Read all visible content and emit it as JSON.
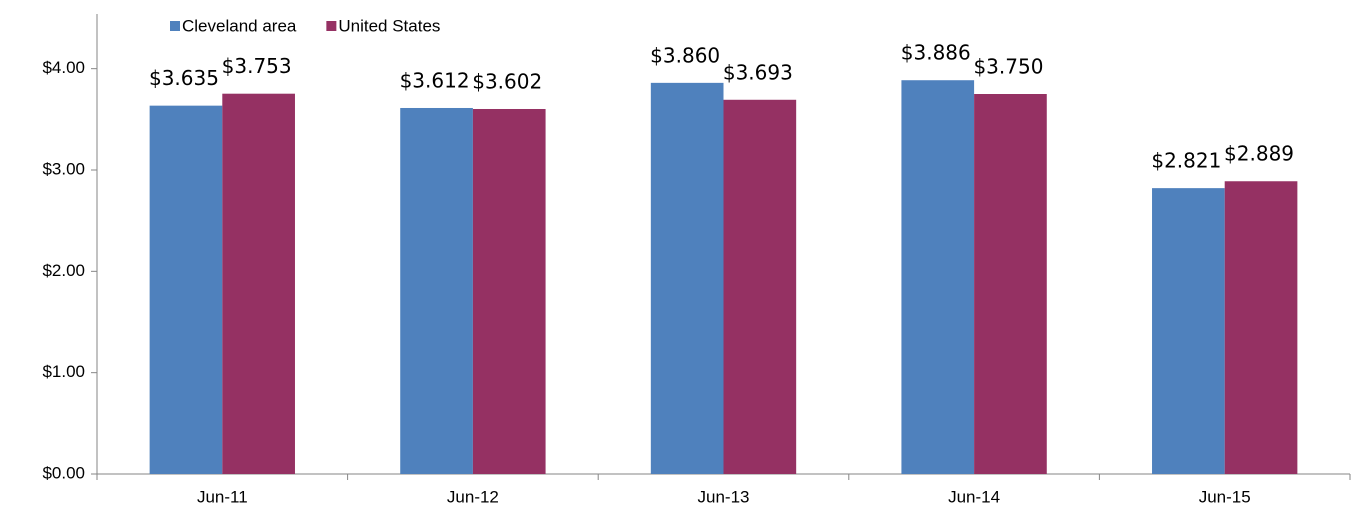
{
  "chart_data": {
    "type": "bar",
    "categories": [
      "Jun-11",
      "Jun-12",
      "Jun-13",
      "Jun-14",
      "Jun-15"
    ],
    "series": [
      {
        "name": "Cleveland area",
        "color": "#4f81bd",
        "values": [
          3.635,
          3.612,
          3.86,
          3.886,
          2.821
        ],
        "value_labels": [
          "$3.635",
          "$3.612",
          "$3.860",
          "$3.886",
          "$2.821"
        ]
      },
      {
        "name": "United States",
        "color": "#953163",
        "values": [
          3.753,
          3.602,
          3.693,
          3.75,
          2.889
        ],
        "value_labels": [
          "$3.753",
          "$3.602",
          "$3.693",
          "$3.750",
          "$2.889"
        ]
      }
    ],
    "ylim": [
      0,
      4.5
    ],
    "yticks": [
      {
        "value": 0,
        "label": "$0.00"
      },
      {
        "value": 1,
        "label": "$1.00"
      },
      {
        "value": 2,
        "label": "$2.00"
      },
      {
        "value": 3,
        "label": "$3.00"
      },
      {
        "value": 4,
        "label": "$4.00"
      }
    ],
    "grid": false,
    "legend": "top"
  }
}
